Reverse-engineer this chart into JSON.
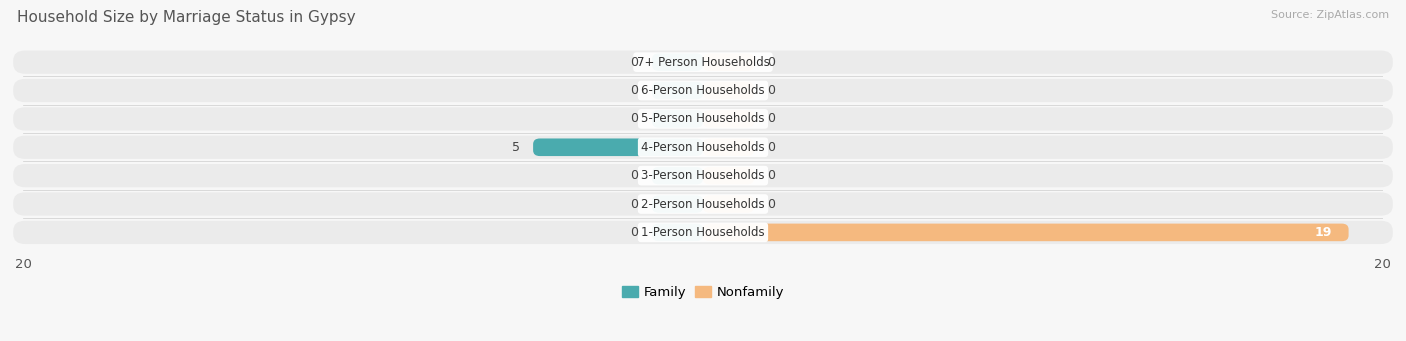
{
  "title": "Household Size by Marriage Status in Gypsy",
  "source": "Source: ZipAtlas.com",
  "categories": [
    "7+ Person Households",
    "6-Person Households",
    "5-Person Households",
    "4-Person Households",
    "3-Person Households",
    "2-Person Households",
    "1-Person Households"
  ],
  "family_values": [
    0,
    0,
    0,
    5,
    0,
    0,
    0
  ],
  "nonfamily_values": [
    0,
    0,
    0,
    0,
    0,
    0,
    19
  ],
  "family_color": "#4AABAE",
  "nonfamily_color": "#F5B97F",
  "stub_size": 1.5,
  "xlim": 20,
  "row_bg_color": "#ebebeb",
  "fig_bg_color": "#f7f7f7",
  "title_fontsize": 11,
  "source_fontsize": 8,
  "label_fontsize": 8.5,
  "value_fontsize": 9
}
